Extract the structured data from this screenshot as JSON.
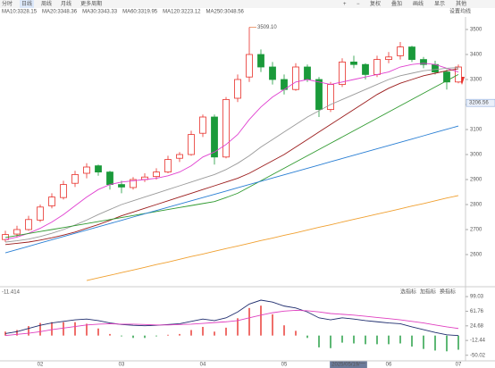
{
  "toolbar": {
    "left": [
      "分时",
      "日线",
      "周线",
      "月线",
      "更多周期"
    ],
    "right": [
      "复权",
      "叠加",
      "画线",
      "显示",
      "其他"
    ]
  },
  "chart_data": [
    {
      "type": "candlestick",
      "categories": [
        null,
        null,
        null,
        "02",
        null,
        null,
        null,
        null,
        null,
        null,
        "03",
        null,
        null,
        null,
        null,
        null,
        null,
        "04",
        null,
        null,
        null,
        null,
        null,
        null,
        "05",
        null,
        null,
        null,
        null,
        null,
        null,
        null,
        null,
        "06",
        null,
        null,
        null,
        null,
        null,
        "07"
      ],
      "candles": [
        [
          2660,
          2695,
          2650,
          2680
        ],
        [
          2682,
          2715,
          2670,
          2700
        ],
        [
          2700,
          2755,
          2695,
          2740
        ],
        [
          2738,
          2800,
          2730,
          2790
        ],
        [
          2795,
          2845,
          2785,
          2830
        ],
        [
          2828,
          2895,
          2820,
          2880
        ],
        [
          2885,
          2935,
          2870,
          2920
        ],
        [
          2925,
          2965,
          2905,
          2950
        ],
        [
          2955,
          2960,
          2915,
          2930
        ],
        [
          2930,
          2935,
          2860,
          2880
        ],
        [
          2880,
          2895,
          2845,
          2870
        ],
        [
          2868,
          2910,
          2860,
          2900
        ],
        [
          2900,
          2925,
          2890,
          2910
        ],
        [
          2912,
          2945,
          2900,
          2930
        ],
        [
          2930,
          2995,
          2925,
          2980
        ],
        [
          2985,
          3010,
          2970,
          3000
        ],
        [
          3000,
          3095,
          2995,
          3080
        ],
        [
          3085,
          3160,
          3070,
          3150
        ],
        [
          3150,
          3160,
          2960,
          2990
        ],
        [
          2990,
          3230,
          2985,
          3220
        ],
        [
          3225,
          3320,
          3210,
          3300
        ],
        [
          3310,
          3509.1,
          3290,
          3400
        ],
        [
          3400,
          3420,
          3330,
          3350
        ],
        [
          3350,
          3370,
          3280,
          3300
        ],
        [
          3300,
          3320,
          3240,
          3260
        ],
        [
          3260,
          3365,
          3255,
          3350
        ],
        [
          3350,
          3360,
          3290,
          3300
        ],
        [
          3300,
          3310,
          3150,
          3180
        ],
        [
          3180,
          3290,
          3170,
          3280
        ],
        [
          3280,
          3385,
          3270,
          3370
        ],
        [
          3370,
          3395,
          3345,
          3360
        ],
        [
          3360,
          3365,
          3300,
          3320
        ],
        [
          3320,
          3395,
          3310,
          3380
        ],
        [
          3380,
          3410,
          3365,
          3390
        ],
        [
          3395,
          3450,
          3380,
          3430
        ],
        [
          3430,
          3435,
          3370,
          3380
        ],
        [
          3380,
          3390,
          3345,
          3360
        ],
        [
          3360,
          3375,
          3320,
          3330
        ],
        [
          3330,
          3340,
          3260,
          3290
        ],
        [
          3290,
          3360,
          3285,
          3350
        ]
      ],
      "up_color": "#e8302a",
      "down_color": "#1a9a3a",
      "series": [
        {
          "name": "MA10:3328.15",
          "color": "#e040d0",
          "values": [
            2660,
            2670,
            2685,
            2705,
            2730,
            2760,
            2795,
            2830,
            2860,
            2880,
            2890,
            2895,
            2900,
            2905,
            2915,
            2930,
            2955,
            2990,
            3010,
            3040,
            3080,
            3140,
            3190,
            3230,
            3260,
            3290,
            3300,
            3290,
            3280,
            3290,
            3300,
            3310,
            3320,
            3330,
            3350,
            3360,
            3365,
            3360,
            3345,
            3330
          ]
        },
        {
          "name": "MA20:3348.36",
          "color": "#9a9a9a",
          "values": [
            2650,
            2655,
            2662,
            2672,
            2685,
            2700,
            2718,
            2738,
            2760,
            2780,
            2800,
            2815,
            2830,
            2845,
            2860,
            2875,
            2890,
            2905,
            2920,
            2940,
            2965,
            2995,
            3030,
            3060,
            3090,
            3120,
            3150,
            3175,
            3200,
            3220,
            3240,
            3260,
            3280,
            3300,
            3315,
            3325,
            3335,
            3340,
            3345,
            3348
          ]
        },
        {
          "name": "MA30:3343.33",
          "color": "#9b1c1c",
          "values": [
            2640,
            2645,
            2650,
            2658,
            2667,
            2678,
            2690,
            2705,
            2720,
            2737,
            2755,
            2770,
            2785,
            2800,
            2815,
            2830,
            2845,
            2860,
            2875,
            2890,
            2905,
            2925,
            2950,
            2975,
            3000,
            3030,
            3060,
            3090,
            3120,
            3150,
            3180,
            3210,
            3240,
            3265,
            3285,
            3300,
            3315,
            3325,
            3335,
            3343
          ]
        },
        {
          "name": "MA60:3319.95",
          "color": "#2f9a2f",
          "values": [
            2668,
            2676,
            2684,
            2692,
            2700,
            2708,
            2716,
            2724,
            2732,
            2740,
            2748,
            2756,
            2764,
            2772,
            2780,
            2788,
            2796,
            2804,
            2812,
            2828,
            2845,
            2870,
            2895,
            2920,
            2945,
            2970,
            2995,
            3020,
            3045,
            3070,
            3095,
            3120,
            3145,
            3170,
            3195,
            3220,
            3245,
            3270,
            3295,
            3320
          ]
        },
        {
          "name": "MA120:3223.12",
          "color": "#2a7fd4",
          "values": [
            2607,
            2620,
            2633,
            2646,
            2659,
            2672,
            2685,
            2698,
            2711,
            2724,
            2737,
            2750,
            2763,
            2776,
            2789,
            2802,
            2815,
            2828,
            2841,
            2854,
            2867,
            2880,
            2893,
            2906,
            2919,
            2932,
            2945,
            2958,
            2971,
            2984,
            2997,
            3010,
            3023,
            3036,
            3049,
            3062,
            3075,
            3088,
            3101,
            3114
          ]
        },
        {
          "name": "MA250:3048.56",
          "color": "#f0a030",
          "values": [
            null,
            null,
            null,
            null,
            null,
            null,
            null,
            2496,
            2507,
            2517,
            2528,
            2538,
            2549,
            2560,
            2570,
            2581,
            2592,
            2602,
            2613,
            2624,
            2634,
            2645,
            2656,
            2666,
            2677,
            2687,
            2698,
            2709,
            2719,
            2730,
            2741,
            2751,
            2762,
            2772,
            2783,
            2794,
            2804,
            2815,
            2826,
            2836
          ]
        }
      ],
      "ylim": [
        2480,
        3550
      ],
      "yticks": [
        2600,
        2700,
        2800,
        2900,
        3000,
        3100,
        3200,
        3300,
        3400,
        3500
      ],
      "high_label": "3509.10",
      "price_label": 3206.56,
      "settings_label": "设置均线",
      "cursor_label": "2025/05/19/一"
    },
    {
      "type": "macd",
      "title": "-11.414",
      "buttons": [
        "选指标",
        "加指标",
        "换指标"
      ],
      "dif_color": "#1f2d6e",
      "dea_color": "#e040c0",
      "dif": [
        5,
        10,
        18,
        26,
        32,
        36,
        40,
        42,
        38,
        32,
        28,
        26,
        25,
        26,
        28,
        30,
        36,
        42,
        38,
        45,
        60,
        80,
        90,
        85,
        75,
        70,
        60,
        45,
        40,
        45,
        42,
        38,
        35,
        32,
        30,
        22,
        15,
        8,
        2,
        0
      ],
      "dea": [
        0,
        3,
        6,
        10,
        15,
        19,
        23,
        27,
        29,
        30,
        29,
        29,
        28,
        27,
        27,
        28,
        29,
        31,
        33,
        35,
        38,
        45,
        52,
        58,
        62,
        64,
        63,
        60,
        56,
        54,
        52,
        49,
        46,
        43,
        40,
        36,
        32,
        27,
        22,
        18
      ],
      "hist": [
        10,
        14,
        24,
        32,
        34,
        34,
        34,
        30,
        18,
        4,
        -2,
        -6,
        -6,
        -2,
        2,
        4,
        14,
        22,
        10,
        20,
        44,
        70,
        76,
        54,
        26,
        12,
        -6,
        -30,
        -32,
        -18,
        -20,
        -22,
        -22,
        -22,
        -20,
        -28,
        -34,
        -38,
        -40,
        -36
      ],
      "ylim": [
        -62,
        115
      ],
      "yticks": [
        99.03,
        61.76,
        24.68,
        -12.44,
        -50.02
      ]
    }
  ]
}
